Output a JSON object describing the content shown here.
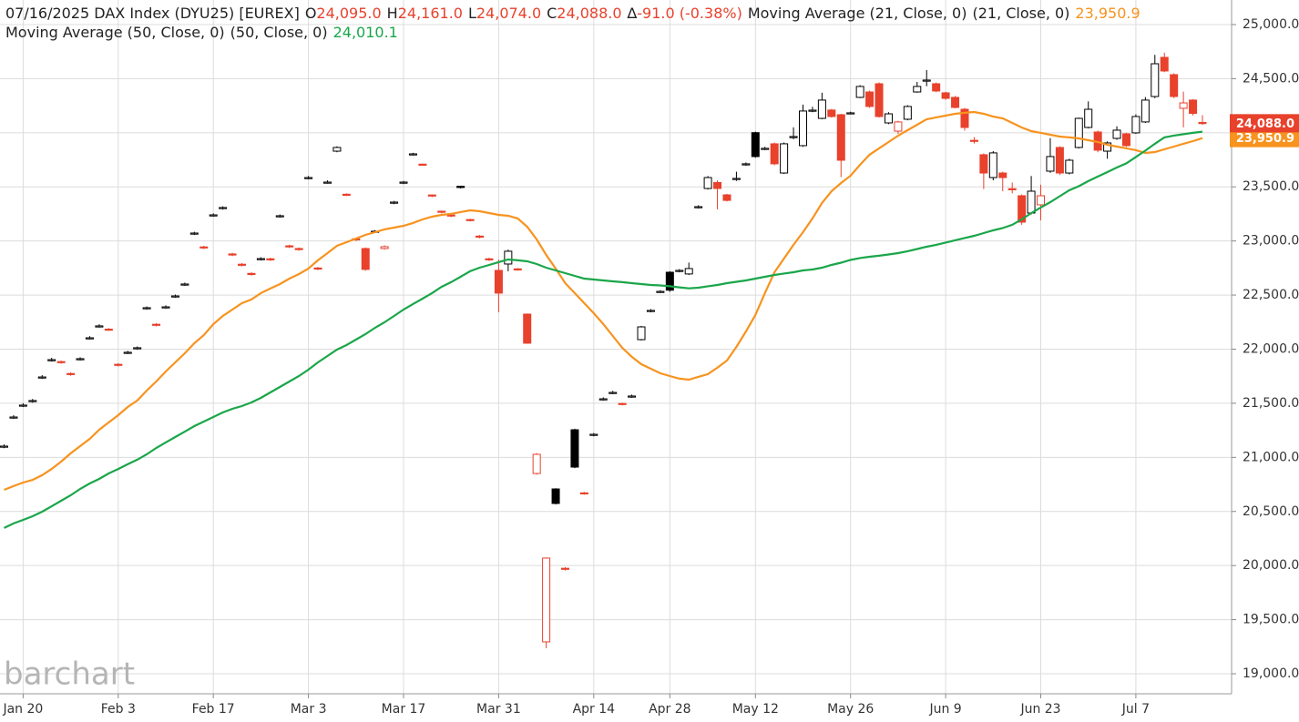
{
  "chart_data": {
    "type": "candlestick",
    "header": {
      "label": "07/16/2025 DAX Index (DYU25) [EUREX]",
      "value_color": "#e8412c",
      "fields": [
        {
          "key": "O",
          "value": 24095,
          "label": "24,095.0"
        },
        {
          "key": "H",
          "value": 24161,
          "label": "24,161.0"
        },
        {
          "key": "L",
          "value": 24074,
          "label": "24,074.0"
        },
        {
          "key": "C",
          "value": 24088,
          "label": "24,088.0"
        },
        {
          "key": "∆",
          "value": -91,
          "label": "-91.0 (-0.38%)"
        }
      ]
    },
    "categories": [
      null,
      null,
      "Jan 20",
      null,
      null,
      null,
      null,
      null,
      null,
      null,
      null,
      null,
      "Feb 3",
      null,
      null,
      null,
      null,
      null,
      null,
      null,
      null,
      null,
      "Feb 17",
      null,
      null,
      null,
      null,
      null,
      null,
      null,
      null,
      null,
      "Mar 3",
      null,
      null,
      null,
      null,
      null,
      null,
      null,
      null,
      null,
      "Mar 17",
      null,
      null,
      null,
      null,
      null,
      null,
      null,
      null,
      null,
      "Mar 31",
      null,
      null,
      null,
      null,
      null,
      null,
      null,
      null,
      null,
      "Apr 14",
      null,
      null,
      null,
      null,
      null,
      null,
      null,
      "Apr 28",
      null,
      null,
      null,
      null,
      null,
      null,
      null,
      null,
      "May 12",
      null,
      null,
      null,
      null,
      null,
      null,
      null,
      null,
      null,
      "May 26",
      null,
      null,
      null,
      null,
      null,
      null,
      null,
      null,
      null,
      "Jun 9",
      null,
      null,
      null,
      null,
      null,
      null,
      null,
      null,
      null,
      "Jun 23",
      null,
      null,
      null,
      null,
      null,
      null,
      null,
      null,
      null,
      "Jul 7",
      null,
      null,
      null,
      null,
      null,
      null,
      null
    ],
    "open": [
      21095,
      21365,
      21475,
      21520,
      21735,
      21895,
      21885,
      21775,
      21905,
      22100,
      22210,
      22185,
      21860,
      21965,
      22005,
      22375,
      22230,
      22385,
      22485,
      22595,
      23065,
      22945,
      23235,
      23300,
      22880,
      22785,
      22700,
      22830,
      22835,
      23225,
      22955,
      22930,
      23580,
      22750,
      23538,
      23830,
      23432,
      23020,
      22930,
      23085,
      22930,
      23350,
      23535,
      23798,
      23710,
      23425,
      23275,
      23240,
      23505,
      23198,
      23045,
      22835,
      22728,
      22787,
      22742,
      22324,
      20851,
      19295,
      20708,
      19975,
      21255,
      20672,
      21205,
      21535,
      21593,
      21498,
      21560,
      22088,
      22350,
      22528,
      22711,
      22722,
      22695,
      23310,
      23485,
      23540,
      23426,
      23570,
      23705,
      24001,
      23850,
      23898,
      23628,
      23958,
      23881,
      24202,
      24133,
      24210,
      24167,
      24178,
      24327,
      24377,
      24453,
      24091,
      24015,
      24125,
      24377,
      24480,
      24453,
      24369,
      24327,
      24217,
      23930,
      23797,
      23586,
      23628,
      23483,
      23418,
      23258,
      23334,
      23645,
      23864,
      23628,
      23864,
      24049,
      24007,
      23830,
      23948,
      23990,
      23999,
      24100,
      24335,
      24697,
      24537,
      24226,
      24302,
      24095
    ],
    "high": [
      21120,
      21390,
      21500,
      21540,
      21760,
      21920,
      21895,
      21785,
      21925,
      22120,
      22230,
      22195,
      21870,
      21985,
      22025,
      22395,
      22240,
      22405,
      22505,
      22615,
      23085,
      22955,
      23255,
      23320,
      22890,
      22795,
      22710,
      22850,
      22845,
      23245,
      22965,
      22940,
      23600,
      22760,
      23560,
      23875,
      23440,
      23030,
      22940,
      23100,
      22960,
      23370,
      23555,
      23815,
      23715,
      23430,
      23280,
      23245,
      23510,
      23205,
      23055,
      22845,
      22829,
      22920,
      22750,
      22330,
      21040,
      20075,
      20715,
      19985,
      21265,
      20680,
      21225,
      21555,
      21615,
      21505,
      21580,
      22215,
      22370,
      22545,
      22720,
      22740,
      22800,
      23330,
      23600,
      23560,
      23435,
      23640,
      23725,
      24010,
      23870,
      23910,
      23910,
      24050,
      24260,
      24240,
      24370,
      24220,
      24175,
      24195,
      24440,
      24390,
      24465,
      24190,
      24110,
      24255,
      24470,
      24580,
      24465,
      24380,
      24340,
      24230,
      23960,
      23810,
      23830,
      23640,
      23540,
      23430,
      23600,
      23520,
      23950,
      23875,
      23760,
      24140,
      24290,
      24020,
      23920,
      24060,
      24000,
      24170,
      24330,
      24720,
      24740,
      24550,
      24380,
      24310,
      24161
    ],
    "low": [
      21085,
      21355,
      21465,
      21505,
      21725,
      21885,
      21865,
      21755,
      21895,
      22090,
      22200,
      22170,
      21840,
      21955,
      21995,
      22365,
      22210,
      22375,
      22475,
      22585,
      23055,
      22925,
      23225,
      23290,
      22860,
      22765,
      22680,
      22820,
      22815,
      23215,
      22935,
      22910,
      23570,
      22730,
      23530,
      23820,
      23415,
      23000,
      22725,
      23075,
      22920,
      23340,
      23525,
      23790,
      23695,
      23405,
      23255,
      23220,
      23485,
      23180,
      23025,
      22815,
      22341,
      22720,
      22725,
      22050,
      20840,
      19236,
      20565,
      19955,
      20900,
      20655,
      21195,
      21525,
      21585,
      21480,
      21550,
      22080,
      22340,
      22520,
      22530,
      22710,
      22685,
      23300,
      23475,
      23292,
      23365,
      23555,
      23695,
      23770,
      23840,
      23700,
      23620,
      23940,
      23870,
      24190,
      24125,
      24140,
      23590,
      24170,
      24320,
      24230,
      24140,
      24080,
      23990,
      24115,
      24370,
      24430,
      24375,
      24305,
      24225,
      24020,
      23900,
      23480,
      23560,
      23460,
      23440,
      23150,
      23245,
      23190,
      23630,
      23610,
      23615,
      23855,
      24040,
      23820,
      23760,
      23935,
      23870,
      23990,
      24090,
      24320,
      24560,
      24320,
      24050,
      24160,
      24074
    ],
    "close": [
      21104,
      21373,
      21483,
      21525,
      21743,
      21903,
      21878,
      21769,
      21912,
      22105,
      22215,
      22181,
      21853,
      21971,
      22013,
      22383,
      22223,
      22391,
      22492,
      22602,
      23073,
      22938,
      23241,
      23309,
      22871,
      22778,
      22694,
      22837,
      22829,
      23233,
      22947,
      22922,
      23586,
      22745,
      23544,
      23864,
      23426,
      23014,
      22737,
      23090,
      22947,
      23359,
      23544,
      23805,
      23704,
      23418,
      23267,
      23233,
      23494,
      23191,
      23039,
      22829,
      22518,
      22905,
      22737,
      22055,
      21028,
      20069,
      20574,
      19968,
      20910,
      20666,
      21213,
      21541,
      21600,
      21491,
      21567,
      22206,
      22358,
      22534,
      22545,
      22728,
      22745,
      23317,
      23586,
      23485,
      23375,
      23578,
      23713,
      23780,
      23856,
      23713,
      23898,
      23965,
      24201,
      24209,
      24302,
      24150,
      23746,
      24184,
      24428,
      24243,
      24150,
      24175,
      24100,
      24243,
      24428,
      24487,
      24386,
      24318,
      24234,
      24049,
      23923,
      23628,
      23814,
      23586,
      23477,
      23174,
      23460,
      23418,
      23780,
      23628,
      23746,
      24133,
      24217,
      23839,
      23906,
      24024,
      23881,
      24150,
      24302,
      24638,
      24571,
      24335,
      24276,
      24179,
      24088
    ],
    "up_color": "#000000",
    "down_color": "#e8412c",
    "series": [
      {
        "name": "Moving Average (21, Close, 0)",
        "params": "(21, Close, 0)",
        "color": "#f7931e",
        "last_label": "23,950.9",
        "tag": true,
        "values": [
          20700,
          20734,
          20767,
          20792,
          20835,
          20893,
          20961,
          21037,
          21104,
          21171,
          21255,
          21323,
          21390,
          21466,
          21525,
          21617,
          21701,
          21794,
          21878,
          21962,
          22055,
          22130,
          22231,
          22307,
          22366,
          22425,
          22459,
          22518,
          22560,
          22602,
          22652,
          22694,
          22745,
          22821,
          22888,
          22955,
          22989,
          23022,
          23056,
          23081,
          23107,
          23123,
          23140,
          23166,
          23199,
          23224,
          23241,
          23250,
          23267,
          23283,
          23275,
          23258,
          23241,
          23233,
          23208,
          23132,
          23014,
          22871,
          22745,
          22610,
          22518,
          22425,
          22332,
          22231,
          22122,
          22013,
          21929,
          21861,
          21819,
          21777,
          21752,
          21727,
          21718,
          21744,
          21769,
          21828,
          21895,
          22021,
          22164,
          22316,
          22518,
          22711,
          22837,
          22964,
          23081,
          23208,
          23351,
          23460,
          23536,
          23603,
          23704,
          23797,
          23856,
          23914,
          23973,
          24024,
          24074,
          24125,
          24142,
          24158,
          24175,
          24184,
          24192,
          24175,
          24150,
          24133,
          24091,
          24049,
          24015,
          23999,
          23982,
          23965,
          23957,
          23948,
          23931,
          23914,
          23889,
          23872,
          23856,
          23839,
          23813,
          23822,
          23847,
          23872,
          23898,
          23923,
          23950.9
        ]
      },
      {
        "name": "Moving Average (50, Close, 0)",
        "params": "(50, Close, 0)",
        "color": "#1aa64a",
        "last_label": "24,010.1",
        "tag": false,
        "values": [
          20347,
          20389,
          20422,
          20456,
          20498,
          20548,
          20599,
          20649,
          20708,
          20759,
          20801,
          20851,
          20893,
          20936,
          20978,
          21028,
          21087,
          21138,
          21188,
          21238,
          21289,
          21331,
          21373,
          21415,
          21449,
          21474,
          21508,
          21550,
          21600,
          21651,
          21701,
          21752,
          21811,
          21878,
          21937,
          21996,
          22038,
          22088,
          22139,
          22198,
          22248,
          22307,
          22366,
          22417,
          22467,
          22518,
          22576,
          22619,
          22669,
          22720,
          22753,
          22778,
          22804,
          22829,
          22821,
          22812,
          22787,
          22753,
          22728,
          22703,
          22677,
          22652,
          22644,
          22635,
          22627,
          22619,
          22610,
          22602,
          22593,
          22589,
          22581,
          22571,
          22562,
          22568,
          22581,
          22593,
          22610,
          22623,
          22635,
          22652,
          22669,
          22686,
          22699,
          22711,
          22728,
          22736,
          22753,
          22778,
          22799,
          22825,
          22842,
          22854,
          22863,
          22875,
          22888,
          22905,
          22926,
          22947,
          22964,
          22985,
          23006,
          23027,
          23048,
          23073,
          23098,
          23119,
          23149,
          23199,
          23258,
          23309,
          23359,
          23414,
          23468,
          23506,
          23553,
          23595,
          23637,
          23679,
          23717,
          23776,
          23835,
          23898,
          23957,
          23974,
          23987,
          23999,
          24010.1
        ]
      }
    ],
    "ylim": [
      18815,
      25227
    ],
    "yticks": [
      {
        "value": 19000,
        "label": "19,000.0"
      },
      {
        "value": 19500,
        "label": "19,500.0"
      },
      {
        "value": 20000,
        "label": "20,000.0"
      },
      {
        "value": 20500,
        "label": "20,500.0"
      },
      {
        "value": 21000,
        "label": "21,000.0"
      },
      {
        "value": 21500,
        "label": "21,500.0"
      },
      {
        "value": 22000,
        "label": "22,000.0"
      },
      {
        "value": 22500,
        "label": "22,500.0"
      },
      {
        "value": 23000,
        "label": "23,000.0"
      },
      {
        "value": 23500,
        "label": "23,500.0"
      },
      {
        "value": 24000,
        "label": "24,000.0"
      },
      {
        "value": 24500,
        "label": "24,500.0"
      },
      {
        "value": 25000,
        "label": "25,000.0"
      }
    ],
    "grid": true,
    "watermark": "barchart"
  }
}
